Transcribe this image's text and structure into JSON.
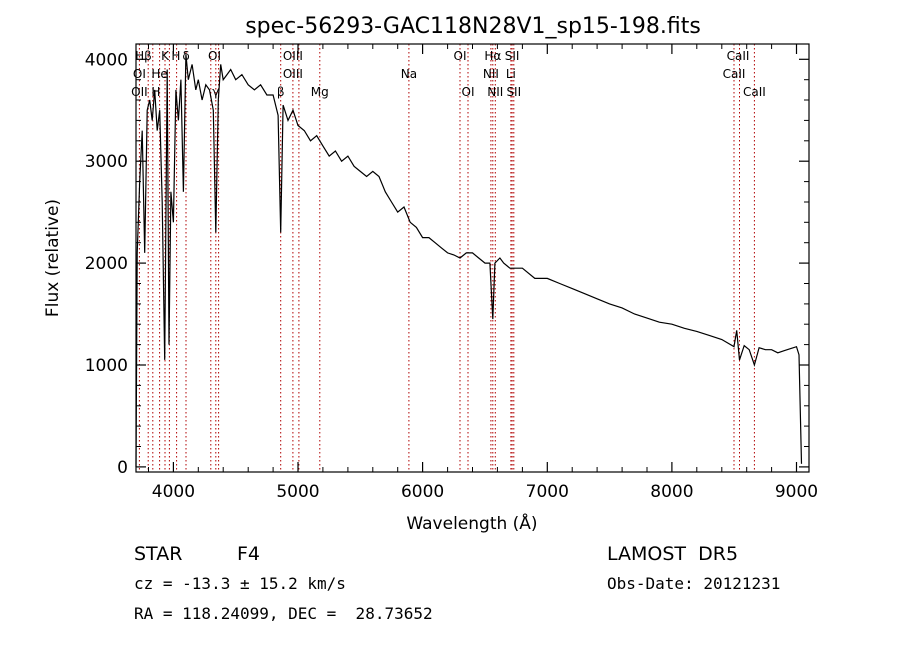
{
  "chart_data": {
    "type": "line",
    "title": "spec-56293-GAC118N28V1_sp15-198.fits",
    "xlabel": "Wavelength (Å)",
    "ylabel": "Flux (relative)",
    "xlim": [
      3700,
      9100
    ],
    "ylim": [
      -50,
      4150
    ],
    "xticks": [
      4000,
      5000,
      6000,
      7000,
      8000,
      9000
    ],
    "yticks": [
      0,
      1000,
      2000,
      3000,
      4000
    ],
    "grid": false,
    "series": [
      {
        "x": [
          3700,
          3710,
          3730,
          3750,
          3770,
          3790,
          3810,
          3830,
          3850,
          3870,
          3890,
          3910,
          3930,
          3950,
          3965,
          3980,
          4000,
          4020,
          4040,
          4060,
          4080,
          4100,
          4120,
          4150,
          4180,
          4200,
          4230,
          4260,
          4290,
          4320,
          4340,
          4360,
          4380,
          4400,
          4430,
          4460,
          4500,
          4550,
          4600,
          4650,
          4700,
          4750,
          4800,
          4840,
          4861,
          4880,
          4920,
          4960,
          5000,
          5050,
          5100,
          5150,
          5200,
          5250,
          5300,
          5350,
          5400,
          5450,
          5500,
          5550,
          5600,
          5650,
          5700,
          5750,
          5800,
          5850,
          5900,
          5950,
          6000,
          6050,
          6100,
          6150,
          6200,
          6250,
          6300,
          6350,
          6400,
          6450,
          6500,
          6540,
          6563,
          6580,
          6620,
          6650,
          6700,
          6750,
          6800,
          6900,
          7000,
          7100,
          7200,
          7300,
          7400,
          7500,
          7600,
          7700,
          7800,
          7900,
          8000,
          8100,
          8200,
          8300,
          8400,
          8498,
          8520,
          8542,
          8580,
          8620,
          8662,
          8700,
          8750,
          8800,
          8850,
          8900,
          8950,
          9000,
          9020,
          9040
        ],
        "y": [
          0,
          2100,
          2800,
          3300,
          2100,
          3500,
          3600,
          3400,
          3700,
          3300,
          3500,
          2600,
          1050,
          3900,
          1200,
          2700,
          2400,
          3700,
          3400,
          3800,
          2700,
          4050,
          3800,
          3950,
          3700,
          3800,
          3600,
          3750,
          3700,
          3500,
          2300,
          3600,
          3950,
          3800,
          3850,
          3900,
          3800,
          3850,
          3750,
          3700,
          3750,
          3650,
          3650,
          3450,
          2300,
          3550,
          3400,
          3500,
          3350,
          3300,
          3200,
          3250,
          3150,
          3050,
          3100,
          3000,
          3050,
          2950,
          2900,
          2850,
          2900,
          2850,
          2700,
          2600,
          2500,
          2550,
          2400,
          2350,
          2250,
          2250,
          2200,
          2150,
          2100,
          2080,
          2050,
          2100,
          2100,
          2050,
          2000,
          2000,
          1450,
          2000,
          2050,
          2000,
          1950,
          1950,
          1950,
          1850,
          1850,
          1800,
          1750,
          1700,
          1650,
          1600,
          1560,
          1500,
          1460,
          1420,
          1400,
          1360,
          1330,
          1290,
          1250,
          1180,
          1340,
          1050,
          1190,
          1150,
          1000,
          1170,
          1150,
          1150,
          1120,
          1140,
          1160,
          1180,
          1100,
          30
        ]
      }
    ],
    "annotations": [
      {
        "text": "Hβ",
        "x": 3760,
        "row": 1
      },
      {
        "text": "K",
        "x": 3933,
        "row": 1
      },
      {
        "text": "H",
        "x": 4020,
        "row": 1
      },
      {
        "text": "δ",
        "x": 4101,
        "row": 1
      },
      {
        "text": "OI",
        "x": 4330,
        "row": 1
      },
      {
        "text": "OIII",
        "x": 4959,
        "row": 1
      },
      {
        "text": "OI",
        "x": 6300,
        "row": 1
      },
      {
        "text": "Hα",
        "x": 6563,
        "row": 1
      },
      {
        "text": "SII",
        "x": 6718,
        "row": 1
      },
      {
        "text": "CaII",
        "x": 8530,
        "row": 1
      },
      {
        "text": "OI",
        "x": 3727,
        "row": 2
      },
      {
        "text": "He",
        "x": 3889,
        "row": 2
      },
      {
        "text": "OIII",
        "x": 4959,
        "row": 2
      },
      {
        "text": "Na",
        "x": 5890,
        "row": 2
      },
      {
        "text": "NII",
        "x": 6548,
        "row": 2
      },
      {
        "text": "Li",
        "x": 6708,
        "row": 2
      },
      {
        "text": "CaII",
        "x": 8498,
        "row": 2
      },
      {
        "text": "OII",
        "x": 3727,
        "row": 3
      },
      {
        "text": "H",
        "x": 3860,
        "row": 3
      },
      {
        "text": "γ",
        "x": 4340,
        "row": 3
      },
      {
        "text": "β",
        "x": 4861,
        "row": 3
      },
      {
        "text": "Mg",
        "x": 5175,
        "row": 3
      },
      {
        "text": "OI",
        "x": 6364,
        "row": 3
      },
      {
        "text": "NII",
        "x": 6583,
        "row": 3
      },
      {
        "text": "SII",
        "x": 6731,
        "row": 3
      },
      {
        "text": "CaII",
        "x": 8662,
        "row": 3
      }
    ],
    "line_markers": [
      3727,
      3798,
      3835,
      3889,
      3933,
      3968,
      4026,
      4101,
      4300,
      4340,
      4363,
      4861,
      4959,
      5007,
      5175,
      5890,
      6300,
      6364,
      6548,
      6563,
      6583,
      6708,
      6718,
      6731,
      8498,
      8542,
      8662
    ]
  },
  "info": {
    "object_type": "STAR",
    "subclass": "F4",
    "survey": "LAMOST  DR5",
    "velocity": "cz = -13.3 ± 15.2 km/s",
    "obs_date": "Obs-Date: 20121231",
    "coords": "RA = 118.24099, DEC =  28.73652"
  },
  "colors": {
    "spectrum": "#000000",
    "markers": "#b00000",
    "axes": "#000000"
  }
}
